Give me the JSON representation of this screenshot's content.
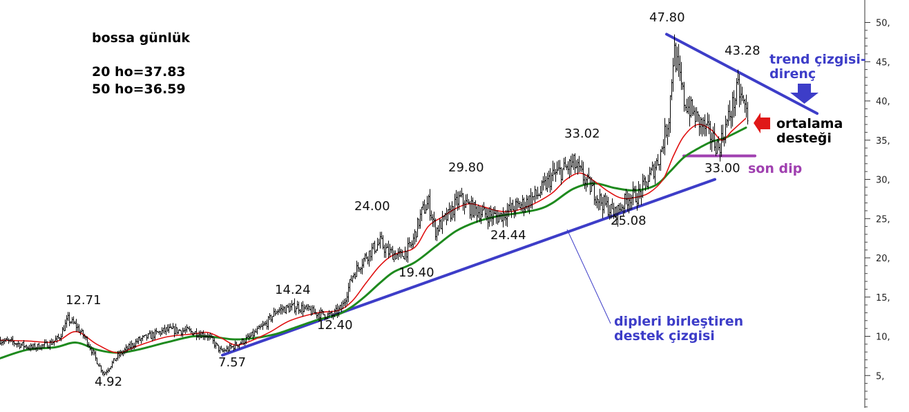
{
  "info": {
    "title": "bossa günlük",
    "ma20": "20 ho=37.83",
    "ma50": "50 ho=36.59"
  },
  "notes": {
    "resistance_line1": "trend çizgisi-",
    "resistance_line2": "direnç",
    "ma_support_line1": "ortalama",
    "ma_support_line2": "desteği",
    "last_low": "son dip",
    "support_line1": "dipleri birleştiren",
    "support_line2": "destek çizgisi"
  },
  "colors": {
    "price": "#000000",
    "ma20": "#e01010",
    "ma50": "#1e8a1e",
    "trendline": "#3d3dc8",
    "last_low_line": "#a040b0",
    "red_arrow": "#e01818",
    "blue_arrow": "#3d3dc8"
  },
  "chart_data": {
    "type": "line",
    "title": "bossa günlük",
    "xlabel": "",
    "ylabel": "",
    "ylim": [
      0,
      52
    ],
    "y_ticks": [
      "5,",
      "10,",
      "15,",
      "20,",
      "25,",
      "30,",
      "35,",
      "40,",
      "45,",
      "50,"
    ],
    "y_tick_values": [
      5,
      10,
      15,
      20,
      25,
      30,
      35,
      40,
      45,
      50
    ],
    "grid": false,
    "series": [
      {
        "name": "price",
        "x": [
          0,
          20,
          45,
          70,
          85,
          98,
          110,
          125,
          140,
          150,
          170,
          200,
          240,
          270,
          300,
          320,
          335,
          360,
          385,
          400,
          430,
          455,
          480,
          495,
          510,
          530,
          550,
          560,
          580,
          595,
          610,
          620,
          630,
          650,
          665,
          680,
          700,
          720,
          740,
          760,
          780,
          800,
          815,
          830,
          850,
          870,
          890,
          910,
          925,
          940,
          955,
          968,
          975,
          990,
          1010,
          1025,
          1040,
          1055,
          1068,
          1082
        ],
        "y": [
          9.5,
          9.2,
          8.5,
          9.0,
          9.8,
          12.2,
          11.3,
          9.5,
          6.8,
          5.2,
          7.5,
          9.5,
          10.8,
          10.7,
          10.1,
          8.0,
          8.6,
          9.8,
          11.6,
          13.3,
          13.8,
          13.0,
          12.6,
          13.7,
          17.8,
          20.3,
          22.0,
          20.8,
          20.2,
          21.5,
          25.8,
          27.0,
          23.5,
          25.5,
          27.6,
          26.4,
          25.6,
          25.2,
          26.2,
          27.0,
          28.2,
          30.5,
          31.2,
          32.0,
          29.5,
          27.2,
          25.6,
          27.8,
          28.0,
          30.3,
          33.0,
          38.0,
          46.6,
          40.0,
          37.5,
          36.0,
          34.0,
          38.0,
          41.5,
          38.2
        ]
      },
      {
        "name": "ma20",
        "x": [
          0,
          40,
          80,
          110,
          140,
          170,
          200,
          240,
          280,
          300,
          320,
          340,
          360,
          390,
          420,
          460,
          490,
          510,
          530,
          550,
          570,
          600,
          620,
          640,
          660,
          680,
          700,
          720,
          740,
          760,
          780,
          800,
          820,
          840,
          860,
          880,
          900,
          920,
          940,
          960,
          975,
          990,
          1010,
          1030,
          1045,
          1060,
          1080
        ],
        "y": [
          9.5,
          9.4,
          9.3,
          10.6,
          9.0,
          7.9,
          8.8,
          9.9,
          10.3,
          10.5,
          9.8,
          8.9,
          9.3,
          10.5,
          12.0,
          13.0,
          13.3,
          14.5,
          16.8,
          19.0,
          20.4,
          21.3,
          24.0,
          25.2,
          26.3,
          26.9,
          26.5,
          26.0,
          25.9,
          26.4,
          27.2,
          28.3,
          30.0,
          30.8,
          29.8,
          28.5,
          27.6,
          27.7,
          28.3,
          30.0,
          33.0,
          35.5,
          37.0,
          36.3,
          35.0,
          36.2,
          37.8
        ]
      },
      {
        "name": "ma50",
        "x": [
          0,
          40,
          80,
          110,
          140,
          170,
          200,
          240,
          280,
          310,
          340,
          370,
          400,
          430,
          460,
          490,
          510,
          530,
          550,
          570,
          600,
          630,
          660,
          690,
          720,
          750,
          780,
          800,
          830,
          860,
          890,
          920,
          950,
          970,
          990,
          1010,
          1030,
          1050,
          1080
        ],
        "y": [
          7.2,
          8.3,
          8.6,
          9.2,
          8.3,
          7.9,
          8.3,
          9.2,
          10.0,
          9.9,
          9.6,
          9.8,
          10.3,
          11.2,
          12.1,
          12.8,
          13.8,
          15.2,
          16.8,
          18.2,
          19.4,
          21.4,
          23.4,
          24.6,
          25.3,
          25.7,
          26.2,
          27.0,
          28.8,
          29.5,
          28.9,
          28.6,
          29.3,
          31.0,
          32.8,
          33.9,
          34.8,
          35.3,
          36.6
        ]
      }
    ],
    "annotations": [
      "47.80",
      "43.28",
      "33.02",
      "29.80",
      "24.00",
      "14.24",
      "12.71",
      "33.00",
      "25.08",
      "24.44",
      "19.40",
      "12.40",
      "7.57",
      "4.92"
    ],
    "trendlines": [
      {
        "name": "support",
        "x": [
          322,
          1035
        ],
        "y": [
          7.6,
          30.0
        ]
      },
      {
        "name": "resistance",
        "x": [
          965,
          1183
        ],
        "y": [
          48.5,
          38.4
        ]
      },
      {
        "name": "last-low",
        "x": [
          990,
          1093
        ],
        "y": [
          33.0,
          33.0
        ]
      }
    ]
  }
}
